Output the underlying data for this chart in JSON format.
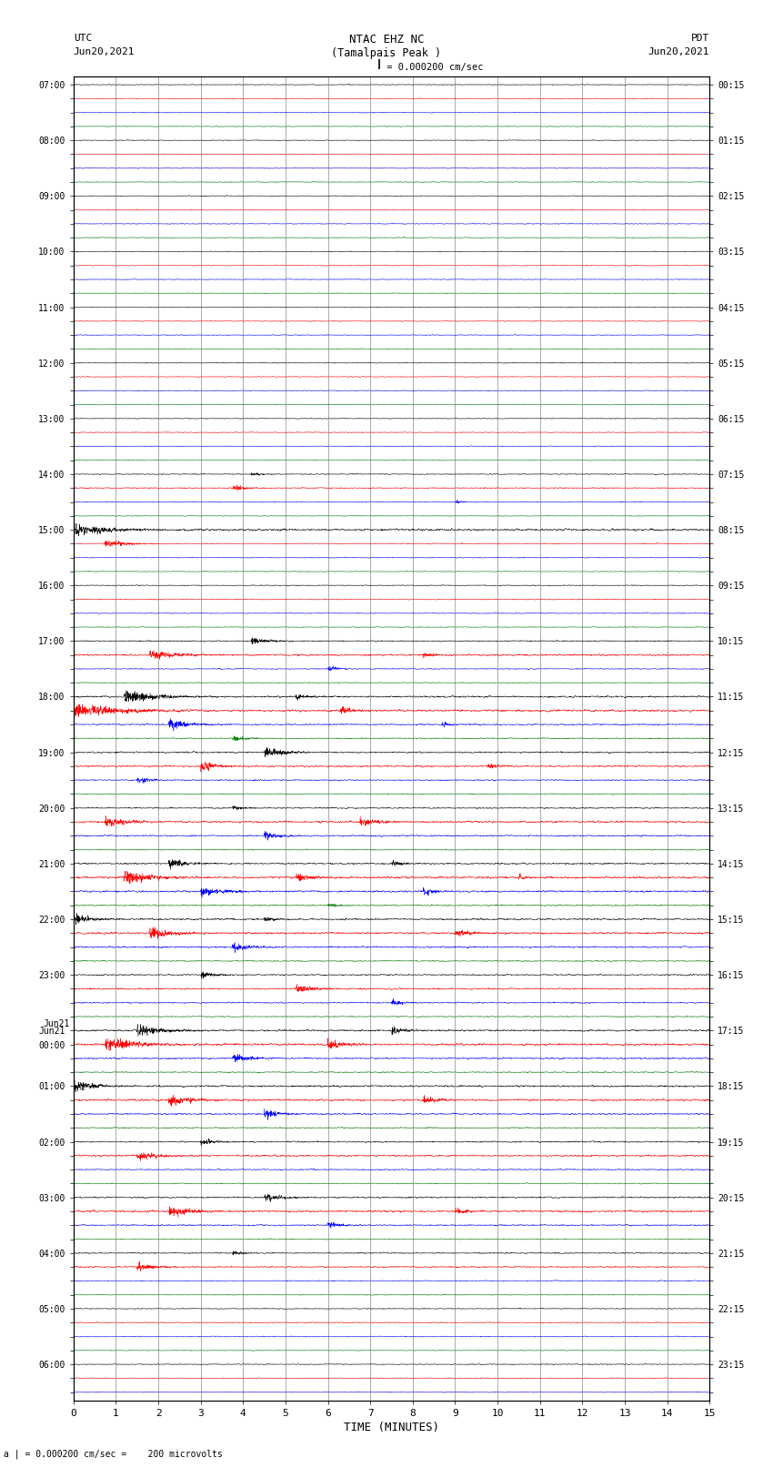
{
  "title_line1": "NTAC EHZ NC",
  "title_line2": "(Tamalpais Peak )",
  "title_scale": "I = 0.000200 cm/sec",
  "left_label_line1": "UTC",
  "left_label_line2": "Jun20,2021",
  "right_label_line1": "PDT",
  "right_label_line2": "Jun20,2021",
  "bottom_label": "TIME (MINUTES)",
  "bottom_note": "a | = 0.000200 cm/sec =    200 microvolts",
  "utc_times": [
    "07:00",
    "",
    "",
    "",
    "08:00",
    "",
    "",
    "",
    "09:00",
    "",
    "",
    "",
    "10:00",
    "",
    "",
    "",
    "11:00",
    "",
    "",
    "",
    "12:00",
    "",
    "",
    "",
    "13:00",
    "",
    "",
    "",
    "14:00",
    "",
    "",
    "",
    "15:00",
    "",
    "",
    "",
    "16:00",
    "",
    "",
    "",
    "17:00",
    "",
    "",
    "",
    "18:00",
    "",
    "",
    "",
    "19:00",
    "",
    "",
    "",
    "20:00",
    "",
    "",
    "",
    "21:00",
    "",
    "",
    "",
    "22:00",
    "",
    "",
    "",
    "23:00",
    "",
    "",
    "",
    "Jun21",
    "00:00",
    "",
    "",
    "01:00",
    "",
    "",
    "",
    "02:00",
    "",
    "",
    "",
    "03:00",
    "",
    "",
    "",
    "04:00",
    "",
    "",
    "",
    "05:00",
    "",
    "",
    "",
    "06:00",
    "",
    ""
  ],
  "pdt_times": [
    "00:15",
    "",
    "",
    "",
    "01:15",
    "",
    "",
    "",
    "02:15",
    "",
    "",
    "",
    "03:15",
    "",
    "",
    "",
    "04:15",
    "",
    "",
    "",
    "05:15",
    "",
    "",
    "",
    "06:15",
    "",
    "",
    "",
    "07:15",
    "",
    "",
    "",
    "08:15",
    "",
    "",
    "",
    "09:15",
    "",
    "",
    "",
    "10:15",
    "",
    "",
    "",
    "11:15",
    "",
    "",
    "",
    "12:15",
    "",
    "",
    "",
    "13:15",
    "",
    "",
    "",
    "14:15",
    "",
    "",
    "",
    "15:15",
    "",
    "",
    "",
    "16:15",
    "",
    "",
    "",
    "17:15",
    "",
    "",
    "",
    "18:15",
    "",
    "",
    "",
    "19:15",
    "",
    "",
    "",
    "20:15",
    "",
    "",
    "",
    "21:15",
    "",
    "",
    "",
    "22:15",
    "",
    "",
    "",
    "23:15",
    "",
    ""
  ],
  "colors_cycle": [
    "black",
    "red",
    "blue",
    "green"
  ],
  "n_rows": 95,
  "n_cols": 3000,
  "x_min": 0,
  "x_max": 15,
  "x_ticks": [
    0,
    1,
    2,
    3,
    4,
    5,
    6,
    7,
    8,
    9,
    10,
    11,
    12,
    13,
    14,
    15
  ],
  "background_color": "white",
  "grid_color": "#888888",
  "label_fontsize": 7.0,
  "title_fontsize": 9
}
